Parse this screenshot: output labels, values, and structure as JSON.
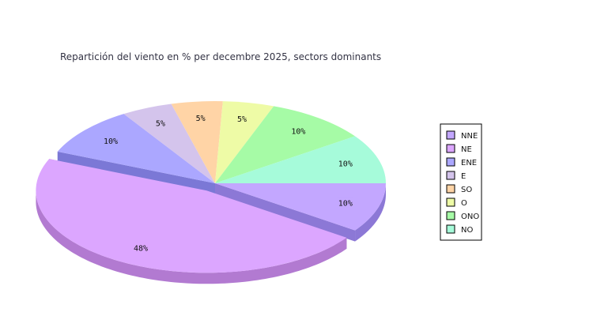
{
  "chart_data": {
    "type": "pie",
    "title": "Repartición del viento en % per decembre 2025, sectors dominants",
    "slices": [
      {
        "label": "NNE",
        "value": 10,
        "pct_label": "10%",
        "color": "#c3a7ff",
        "side": "#8c78d6"
      },
      {
        "label": "NE",
        "value": 48,
        "pct_label": "48%",
        "color": "#dca6ff",
        "side": "#b27ad1",
        "exploded": true
      },
      {
        "label": "ENE",
        "value": 10,
        "pct_label": "10%",
        "color": "#aba7ff",
        "side": "#7b78d6"
      },
      {
        "label": "E",
        "value": 5,
        "pct_label": "5%",
        "color": "#d4c4ec",
        "side": "#a694c4"
      },
      {
        "label": "SO",
        "value": 5,
        "pct_label": "5%",
        "color": "#ffd4a6",
        "side": "#d8aa78"
      },
      {
        "label": "O",
        "value": 5,
        "pct_label": "5%",
        "color": "#eefba6",
        "side": "#c4d078"
      },
      {
        "label": "ONO",
        "value": 10,
        "pct_label": "10%",
        "color": "#a6fba6",
        "side": "#78d078"
      },
      {
        "label": "NO",
        "value": 10,
        "pct_label": "10%",
        "color": "#a6fbda",
        "side": "#78d0b0"
      }
    ],
    "legend_position": "right"
  }
}
